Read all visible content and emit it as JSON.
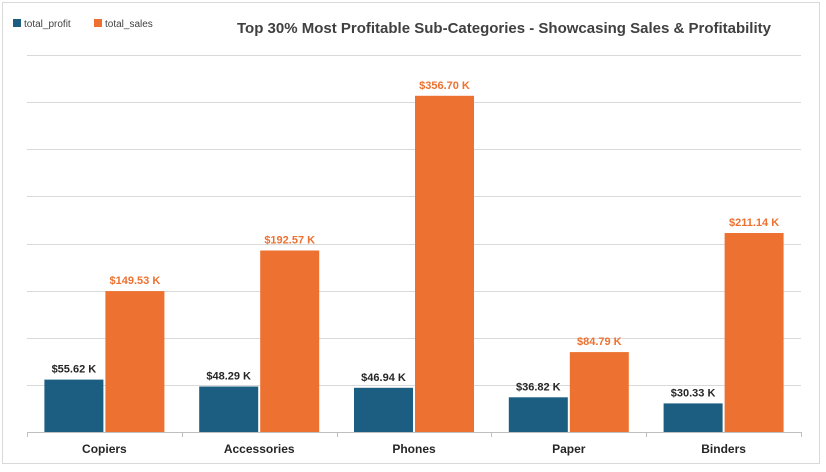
{
  "chart_data": {
    "type": "bar",
    "title": "Top 30% Most Profitable Sub-Categories - Showcasing Sales & Profitability",
    "categories": [
      "Copiers",
      "Accessories",
      "Phones",
      "Paper",
      "Binders"
    ],
    "series": [
      {
        "name": "total_profit",
        "color": "#1b5e82",
        "values": [
          55.62,
          48.29,
          46.94,
          36.82,
          30.33
        ],
        "labels": [
          "$55.62 K",
          "$48.29 K",
          "$46.94 K",
          "$36.82 K",
          "$30.33 K"
        ]
      },
      {
        "name": "total_sales",
        "color": "#ed7130",
        "values": [
          149.53,
          192.57,
          356.7,
          84.79,
          211.14
        ],
        "labels": [
          "$149.53 K",
          "$192.57 K",
          "$356.70 K",
          "$84.79 K",
          "$211.14 K"
        ]
      }
    ],
    "ylim": [
      0,
      400
    ],
    "y_unit": "K",
    "grid": true,
    "legend_position": "top-left",
    "label_color": "#262626",
    "sales_label_color": "#ed7130"
  }
}
